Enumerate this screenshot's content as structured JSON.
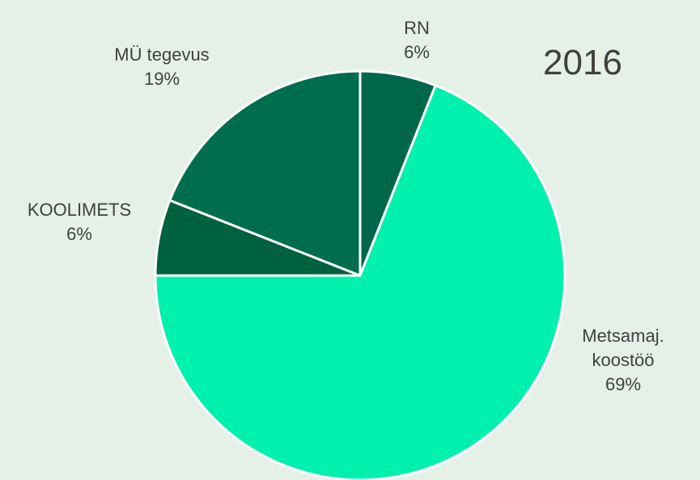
{
  "chart_data": {
    "type": "pie",
    "title": "2016",
    "categories": [
      "RN",
      "Metsamaj. koostöö",
      "KOOLIMETS",
      "MÜ tegevus"
    ],
    "values": [
      6,
      69,
      6,
      19
    ],
    "value_labels": [
      "6%",
      "69%",
      "6%",
      "19%"
    ],
    "colors": [
      "#00664a",
      "#00f0ae",
      "#00613f",
      "#006e4e"
    ]
  }
}
